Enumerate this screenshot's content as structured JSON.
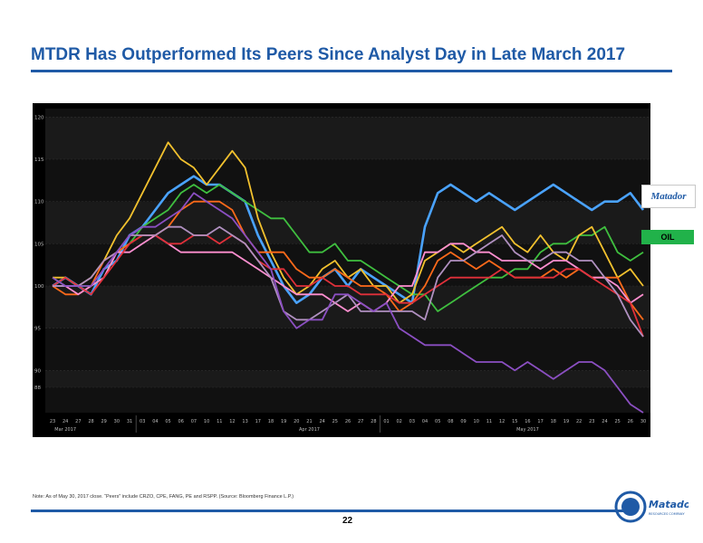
{
  "slide": {
    "title": "MTDR Has Outperformed Its Peers Since Analyst Day in Late March 2017",
    "note": "Note: As of May 30, 2017 close. “Peers” include CRZO, CPE, FANG, PE and RSPP.  (Source: Bloomberg Finance L.P.)",
    "page_number": "22",
    "legend_logo_text": "Matador",
    "footer_logo_text": "Matador",
    "footer_logo_subtext": "RESOURCES COMPANY"
  },
  "colors": {
    "title": "#1f5aa6",
    "rule": "#1f5aa6",
    "chart_bg": "#000000",
    "oil_label_bg": "#21b24a"
  },
  "chart_data": {
    "type": "line",
    "ylim": [
      85,
      121
    ],
    "y_ticks": [
      120,
      115,
      110,
      105,
      100,
      95,
      90,
      88
    ],
    "x_labels": [
      "23",
      "24",
      "27",
      "28",
      "29",
      "30",
      "31",
      "03",
      "04",
      "05",
      "06",
      "07",
      "10",
      "11",
      "12",
      "13",
      "17",
      "18",
      "19",
      "20",
      "21",
      "24",
      "25",
      "26",
      "27",
      "28",
      "01",
      "02",
      "03",
      "04",
      "05",
      "08",
      "09",
      "10",
      "11",
      "12",
      "15",
      "16",
      "17",
      "18",
      "19",
      "22",
      "23",
      "24",
      "25",
      "26",
      "30"
    ],
    "month_labels": [
      "Mar 2017",
      "Apr 2017",
      "May 2017"
    ],
    "legend": [
      "Matador",
      "OIL"
    ],
    "series": [
      {
        "name": "Matador",
        "color": "#4aa3ff",
        "values": [
          100,
          101,
          100,
          99,
          102,
          103,
          106,
          107,
          109,
          111,
          112,
          113,
          112,
          112,
          111,
          110,
          106,
          103,
          100,
          98,
          99,
          101,
          102,
          100,
          102,
          101,
          100,
          99,
          98,
          107,
          111,
          112,
          111,
          110,
          111,
          110,
          109,
          110,
          111,
          112,
          111,
          110,
          109,
          110,
          110,
          111,
          109
        ]
      },
      {
        "name": "OIL",
        "color": "#3fbf3f",
        "values": [
          101,
          100,
          100,
          100,
          101,
          104,
          105,
          107,
          108,
          109,
          111,
          112,
          111,
          112,
          111,
          110,
          109,
          108,
          108,
          106,
          104,
          104,
          105,
          103,
          103,
          102,
          101,
          100,
          99,
          99,
          97,
          98,
          99,
          100,
          101,
          101,
          102,
          102,
          104,
          105,
          105,
          106,
          106,
          107,
          104,
          103,
          104
        ]
      },
      {
        "values": [
          101,
          101,
          100,
          101,
          103,
          106,
          108,
          111,
          114,
          117,
          115,
          114,
          112,
          114,
          116,
          114,
          108,
          104,
          101,
          99,
          100,
          102,
          103,
          101,
          102,
          100,
          100,
          98,
          99,
          103,
          104,
          105,
          104,
          105,
          106,
          107,
          105,
          104,
          106,
          104,
          103,
          106,
          107,
          104,
          101,
          102,
          100
        ]
      },
      {
        "values": [
          100,
          99,
          99,
          100,
          103,
          104,
          105,
          106,
          106,
          107,
          109,
          110,
          110,
          110,
          109,
          106,
          104,
          104,
          104,
          102,
          101,
          101,
          102,
          101,
          100,
          100,
          99,
          97,
          98,
          100,
          103,
          104,
          103,
          102,
          103,
          102,
          101,
          101,
          101,
          102,
          101,
          102,
          101,
          101,
          101,
          98,
          96
        ]
      },
      {
        "values": [
          100,
          100,
          99,
          100,
          101,
          104,
          104,
          105,
          106,
          105,
          104,
          104,
          104,
          104,
          104,
          103,
          102,
          101,
          100,
          99,
          99,
          99,
          98,
          97,
          98,
          97,
          98,
          100,
          100,
          104,
          104,
          105,
          105,
          104,
          104,
          103,
          103,
          103,
          102,
          103,
          103,
          102,
          101,
          101,
          100,
          98,
          99
        ]
      },
      {
        "values": [
          100,
          101,
          100,
          99,
          101,
          103,
          105,
          106,
          106,
          105,
          105,
          106,
          106,
          105,
          106,
          105,
          103,
          102,
          102,
          100,
          100,
          101,
          100,
          100,
          99,
          99,
          99,
          98,
          98,
          99,
          100,
          101,
          101,
          101,
          101,
          102,
          101,
          101,
          101,
          101,
          102,
          102,
          101,
          100,
          99,
          98,
          94
        ]
      },
      {
        "values": [
          100,
          100,
          100,
          101,
          103,
          104,
          106,
          106,
          106,
          107,
          107,
          106,
          106,
          107,
          106,
          105,
          103,
          101,
          97,
          96,
          96,
          97,
          98,
          99,
          97,
          97,
          97,
          97,
          97,
          96,
          101,
          103,
          103,
          104,
          105,
          106,
          104,
          103,
          103,
          104,
          104,
          103,
          103,
          101,
          99,
          96,
          94
        ]
      },
      {
        "values": [
          101,
          100,
          100,
          100,
          102,
          104,
          106,
          107,
          107,
          108,
          109,
          111,
          110,
          109,
          108,
          106,
          104,
          102,
          97,
          95,
          96,
          96,
          99,
          99,
          98,
          97,
          98,
          95,
          94,
          93,
          93,
          93,
          92,
          91,
          91,
          91,
          90,
          91,
          90,
          89,
          90,
          91,
          91,
          90,
          88,
          86,
          85
        ]
      }
    ]
  }
}
